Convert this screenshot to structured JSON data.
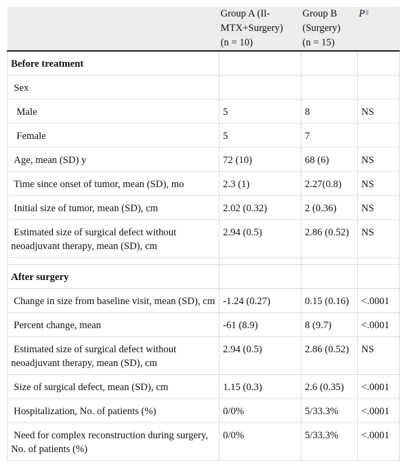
{
  "header": {
    "col0": "",
    "col1_line1": "Group A (Il-MTX+Surgery)",
    "col1_line2": "(n = 10)",
    "col2_line1": "Group B (Surgery)",
    "col2_line2": "(n = 15)",
    "col3_label": "P",
    "col3_sup": "a"
  },
  "sections": {
    "before": "Before treatment",
    "after": "After surgery"
  },
  "rows_before": [
    {
      "label": "Sex",
      "a": "",
      "b": "",
      "p": ""
    },
    {
      "label": "Male",
      "a": "5",
      "b": "8",
      "p": "NS"
    },
    {
      "label": "Female",
      "a": "5",
      "b": "7",
      "p": ""
    },
    {
      "label": "Age, mean (SD) y",
      "a": "72 (10)",
      "b": "68 (6)",
      "p": "NS"
    },
    {
      "label": "Time since onset of tumor, mean (SD), mo",
      "a": "2.3 (1)",
      "b": "2.27(0.8)",
      "p": "NS"
    },
    {
      "label": "Initial size of tumor, mean (SD), cm",
      "a": "2.02 (0.32)",
      "b": "2 (0.36)",
      "p": "NS"
    },
    {
      "label": "Estimated size of surgical defect without neoadjuvant therapy, mean (SD), cm",
      "a": "2.94 (0.5)",
      "b": "2.86 (0.52)",
      "p": "NS"
    }
  ],
  "rows_after": [
    {
      "label": "Change in size from baseline visit, mean (SD), cm",
      "a": "-1.24 (0.27)",
      "b": "0.15 (0.16)",
      "p": "<.0001"
    },
    {
      "label": "Percent change, mean",
      "a": "-61 (8.9)",
      "b": "8 (9.7)",
      "p": "<.0001"
    },
    {
      "label": "Estimated size of surgical defect without neoadjuvant therapy, mean (SD), cm",
      "a": "2.94 (0.5)",
      "b": "2.86 (0.52)",
      "p": "NS"
    },
    {
      "label": "Size of surgical defect, mean (SD), cm",
      "a": "1.15 (0.3)",
      "b": "2.6 (0.35)",
      "p": "<.0001"
    },
    {
      "label": "Hospitalization, No. of patients (%)",
      "a": "0/0%",
      "b": "5/33.3%",
      "p": "<.0001"
    },
    {
      "label": "Need for complex reconstruction during surgery, No. of patients (%)",
      "a": "0/0%",
      "b": "5/33.3%",
      "p": "<.0001"
    }
  ]
}
